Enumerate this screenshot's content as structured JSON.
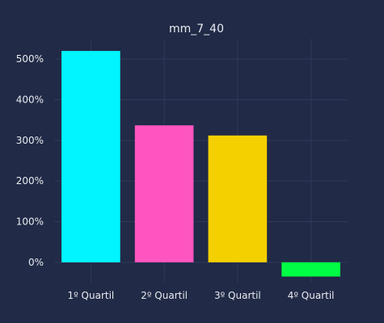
{
  "chart_data": {
    "type": "bar",
    "title": "mm_7_40",
    "xlabel": "",
    "ylabel": "",
    "categories": [
      "1º Quartil",
      "2º Quartil",
      "3º Quartil",
      "4º Quartil"
    ],
    "values": [
      5.2,
      3.37,
      3.12,
      -0.35
    ],
    "colors": [
      "#00f5ff",
      "#ff55c0",
      "#f5d000",
      "#00ff44"
    ],
    "ylim": [
      -0.5,
      5.5
    ],
    "yticks": [
      0,
      1,
      2,
      3,
      4,
      5
    ],
    "ytick_labels": [
      "0%",
      "100%",
      "200%",
      "300%",
      "400%",
      "500%"
    ],
    "grid": true,
    "legend": "none",
    "background": "#212a46",
    "grid_color": "#2f3a5e",
    "text_color": "#e8eaf0"
  }
}
